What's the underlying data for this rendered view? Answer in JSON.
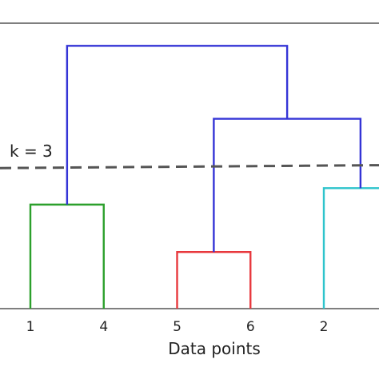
{
  "chart_data": {
    "type": "dendrogram",
    "title": "",
    "xlabel": "Data points",
    "ylabel": "",
    "ylim": [
      0,
      7.6
    ],
    "grid": false,
    "leaves": [
      "1",
      "4",
      "5",
      "6",
      "2"
    ],
    "merges": [
      {
        "left": "1",
        "right": "4",
        "height": 2.85,
        "color": "#2ca02c"
      },
      {
        "left": "5",
        "right": "6",
        "height": 1.55,
        "color": "#e8383d"
      },
      {
        "left": "2",
        "right": "leaf-right-offscreen",
        "height": 3.3,
        "color": "#2ec4cc"
      },
      {
        "left": "5-6",
        "right": "2-cluster",
        "height": 5.2,
        "color": "#3434d6"
      },
      {
        "left": "1-4",
        "right": "5-6-2",
        "height": 7.2,
        "color": "#3434d6"
      }
    ],
    "cut_line": {
      "label": "k = 3",
      "y_left": 3.85,
      "y_right": 3.93,
      "color": "#555555"
    }
  }
}
